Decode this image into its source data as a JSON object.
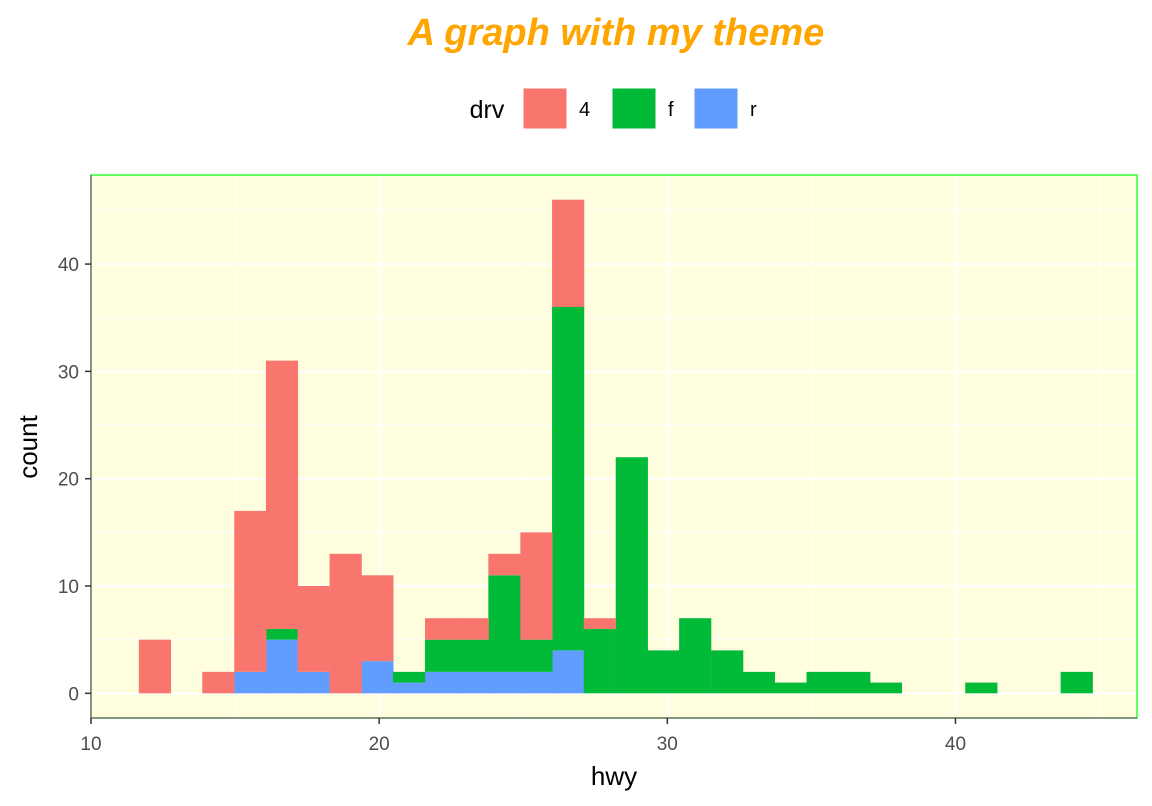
{
  "chart_data": {
    "type": "bar",
    "stacked": true,
    "title": "A graph with my theme",
    "xlabel": "hwy",
    "ylabel": "count",
    "xlim": [
      10,
      46.3
    ],
    "ylim": [
      -2.3,
      48.3
    ],
    "x_ticks": [
      "10",
      "20",
      "30",
      "40"
    ],
    "x_tick_values": [
      10,
      20,
      30,
      40
    ],
    "y_ticks": [
      "0",
      "10",
      "20",
      "30",
      "40"
    ],
    "y_tick_values": [
      0,
      10,
      20,
      30,
      40
    ],
    "grid": true,
    "legend": {
      "title": "drv",
      "placement": "top",
      "entries": [
        "4",
        "f",
        "r"
      ]
    },
    "colors": {
      "4": "#F8766D",
      "f": "#00BA38",
      "r": "#619CFF",
      "title": "#FFA500",
      "panel": "#FFFFE0",
      "panel_border": "#00FF00"
    },
    "bin_width": 1.1034,
    "bin_left_edges": [
      11.66,
      12.76,
      13.86,
      14.97,
      16.07,
      17.17,
      18.28,
      19.38,
      20.48,
      21.59,
      22.69,
      23.79,
      24.9,
      26.0,
      27.1,
      28.21,
      29.31,
      30.41,
      31.52,
      32.62,
      33.72,
      34.83,
      35.93,
      37.03,
      38.14,
      39.24,
      40.34,
      41.45,
      42.55,
      43.65
    ],
    "series": [
      {
        "name": "r",
        "values": [
          0,
          0,
          0,
          2,
          5,
          2,
          0,
          3,
          1,
          2,
          2,
          2,
          2,
          4,
          0,
          0,
          0,
          0,
          0,
          0,
          0,
          0,
          0,
          0,
          0,
          0,
          0,
          0,
          0,
          0
        ]
      },
      {
        "name": "f",
        "values": [
          0,
          0,
          0,
          0,
          1,
          0,
          0,
          0,
          1,
          3,
          3,
          9,
          3,
          32,
          6,
          22,
          4,
          7,
          4,
          2,
          1,
          2,
          2,
          1,
          0,
          0,
          1,
          0,
          0,
          2
        ]
      },
      {
        "name": "4",
        "values": [
          5,
          0,
          2,
          15,
          25,
          8,
          13,
          8,
          0,
          2,
          2,
          2,
          10,
          10,
          1,
          0,
          0,
          0,
          0,
          0,
          0,
          0,
          0,
          0,
          0,
          0,
          0,
          0,
          0,
          0
        ]
      }
    ]
  }
}
